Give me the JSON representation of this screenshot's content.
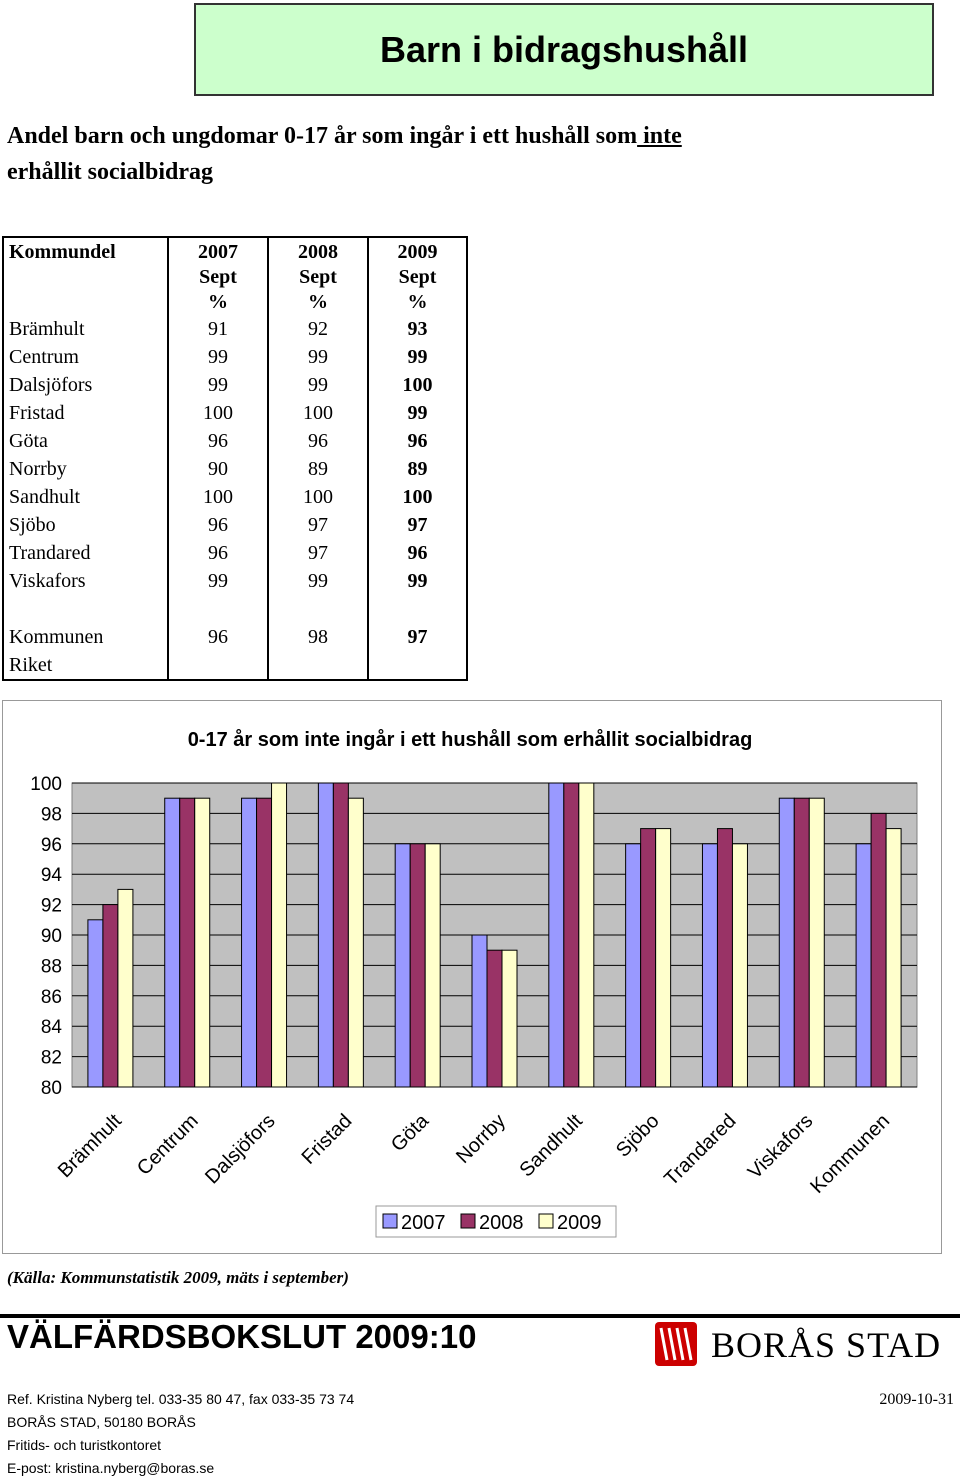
{
  "page": {
    "title": "Barn i bidragshushåll",
    "subtitle_part1": "Andel barn och ungdomar 0-17 år som ingår i ett hushåll som",
    "subtitle_underlined": " inte ",
    "subtitle_part2": "erhållit socialbidrag"
  },
  "table": {
    "header": {
      "col1": "Kommundel",
      "col2": [
        "2007",
        "Sept",
        "%"
      ],
      "col3": [
        "2008",
        "Sept",
        "%"
      ],
      "col4": [
        "2009",
        "Sept",
        "%"
      ]
    },
    "rows": [
      {
        "name": "Brämhult",
        "v2007": "91",
        "v2008": "92",
        "v2009": "93"
      },
      {
        "name": "Centrum",
        "v2007": "99",
        "v2008": "99",
        "v2009": "99"
      },
      {
        "name": "Dalsjöfors",
        "v2007": "99",
        "v2008": "99",
        "v2009": "100"
      },
      {
        "name": "Fristad",
        "v2007": "100",
        "v2008": "100",
        "v2009": "99"
      },
      {
        "name": "Göta",
        "v2007": "96",
        "v2008": "96",
        "v2009": "96"
      },
      {
        "name": "Norrby",
        "v2007": "90",
        "v2008": "89",
        "v2009": "89"
      },
      {
        "name": "Sandhult",
        "v2007": "100",
        "v2008": "100",
        "v2009": "100"
      },
      {
        "name": "Sjöbo",
        "v2007": "96",
        "v2008": "97",
        "v2009": "97"
      },
      {
        "name": "Trandared",
        "v2007": "96",
        "v2008": "97",
        "v2009": "96"
      },
      {
        "name": "Viskafors",
        "v2007": "99",
        "v2008": "99",
        "v2009": "99"
      }
    ],
    "kommunen": {
      "name": "Kommunen",
      "v2007": "96",
      "v2008": "98",
      "v2009": "97"
    },
    "riket": {
      "name": "Riket"
    }
  },
  "chart_data": {
    "type": "bar",
    "title": "0-17 år som inte ingår i ett hushåll som erhållit socialbidrag",
    "categories": [
      "Brämhult",
      "Centrum",
      "Dalsjöfors",
      "Fristad",
      "Göta",
      "Norrby",
      "Sandhult",
      "Sjöbo",
      "Trandared",
      "Viskafors",
      "Kommunen"
    ],
    "series": [
      {
        "name": "2007",
        "color": "#9999ff",
        "values": [
          91,
          99,
          99,
          100,
          96,
          90,
          100,
          96,
          96,
          99,
          96
        ]
      },
      {
        "name": "2008",
        "color": "#993366",
        "values": [
          92,
          99,
          99,
          100,
          96,
          89,
          100,
          97,
          97,
          99,
          98
        ]
      },
      {
        "name": "2009",
        "color": "#ffffcc",
        "values": [
          93,
          99,
          100,
          99,
          96,
          89,
          100,
          97,
          96,
          99,
          97
        ]
      }
    ],
    "yticks": [
      "100",
      "98",
      "96",
      "94",
      "92",
      "90",
      "88",
      "86",
      "84",
      "82",
      "80"
    ],
    "ylim": [
      80,
      100
    ],
    "plot_background": "#c0c0c0",
    "grid": true,
    "legend_position": "bottom"
  },
  "footer": {
    "source": "(Källa: Kommunstatistik 2009, mäts i september)",
    "report_title": "VÄLFÄRDSBOKSLUT 2009:10",
    "logo_text": "BORÅS STAD",
    "contact_lines": [
      "Ref. Kristina Nyberg tel. 033-35 80 47, fax 033-35 73 74",
      "BORÅS STAD, 50180 BORÅS",
      "Fritids- och turistkontoret",
      "E-post: kristina.nyberg@boras.se"
    ],
    "date": "2009-10-31"
  }
}
